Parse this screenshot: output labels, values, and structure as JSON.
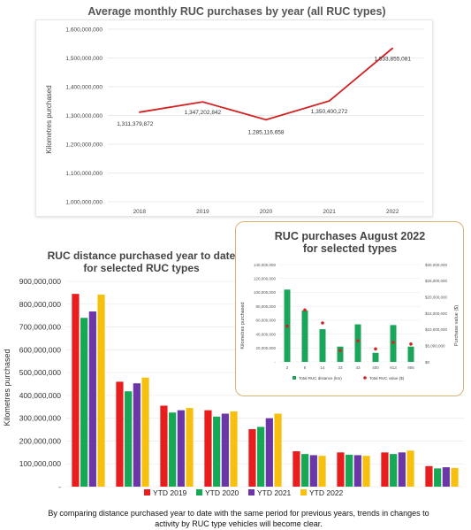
{
  "charts": {
    "c1": {
      "title": "Average monthly RUC purchases by year (all RUC types)",
      "ylabel": "Kilometres purchased"
    },
    "c2": {
      "title_line1": "RUC distance purchased year to date",
      "title_line2": "for selected RUC types",
      "ylabel": "Kilometres purchased"
    },
    "c3": {
      "title_line1": "RUC purchases August 2022",
      "title_line2": "for selected types",
      "ylabel_left": "Kilometres purchased",
      "ylabel_right": "Purchase value ($)"
    }
  },
  "caption": "By comparing distance purchased year to date with the same period for previous years, trends in changes to activity by RUC type vehicles will become clear.",
  "chart_data": [
    {
      "type": "line",
      "title": "Average monthly RUC purchases by year (all RUC types)",
      "ylabel": "Kilometres purchased",
      "x": [
        "2018",
        "2019",
        "2020",
        "2021",
        "2022"
      ],
      "series": [
        {
          "color": "#d42020",
          "values": [
            1311379872,
            1347202842,
            1285116658,
            1350400272,
            1533855081
          ],
          "labels": [
            "1,311,379,872",
            "1,347,202,842",
            "1,285,116,658",
            "1,350,400,272",
            "1,533,855,081"
          ]
        }
      ],
      "ylim": [
        1000000000,
        1600000000
      ],
      "yticks": [
        1000000000,
        1100000000,
        1200000000,
        1300000000,
        1400000000,
        1500000000,
        1600000000
      ],
      "ytick_labels": [
        "1,000,000,000",
        "1,100,000,000",
        "1,200,000,000",
        "1,300,000,000",
        "1,400,000,000",
        "1,500,000,000",
        "1,600,000,000"
      ],
      "grid": true
    },
    {
      "type": "bar",
      "title": "RUC distance purchased year to date for selected RUC types",
      "ylabel": "Kilometres purchased",
      "categories": [
        "",
        "",
        "",
        "",
        "",
        "",
        "",
        "",
        ""
      ],
      "series": [
        {
          "name": "YTD 2019",
          "color": "#e81d1d",
          "values": [
            845000000,
            460000000,
            355000000,
            335000000,
            252000000,
            155000000,
            150000000,
            150000000,
            90000000
          ]
        },
        {
          "name": "YTD 2020",
          "color": "#15a956",
          "values": [
            740000000,
            418000000,
            325000000,
            307000000,
            262000000,
            143000000,
            140000000,
            143000000,
            80000000
          ]
        },
        {
          "name": "YTD 2021",
          "color": "#6c36a8",
          "values": [
            768000000,
            453000000,
            335000000,
            320000000,
            300000000,
            138000000,
            138000000,
            150000000,
            85000000
          ]
        },
        {
          "name": "YTD 2022",
          "color": "#f7bf0e",
          "values": [
            842000000,
            478000000,
            345000000,
            330000000,
            320000000,
            135000000,
            135000000,
            158000000,
            82000000
          ]
        }
      ],
      "ylim": [
        0,
        900000000
      ],
      "yticks": [
        0,
        100000000,
        200000000,
        300000000,
        400000000,
        500000000,
        600000000,
        700000000,
        800000000,
        900000000
      ],
      "ytick_labels": [
        "-",
        "100,000,000",
        "200,000,000",
        "300,000,000",
        "400,000,000",
        "500,000,000",
        "600,000,000",
        "700,000,000",
        "800,000,000",
        "900,000,000"
      ],
      "legend": "bottom",
      "grid": true
    },
    {
      "type": "bar",
      "title": "RUC purchases August 2022 for selected types",
      "ylabel": "Kilometres purchased",
      "y2label": "Purchase value ($)",
      "categories": [
        "2",
        "6",
        "14",
        "33",
        "43",
        "400",
        "913",
        "956"
      ],
      "series": [
        {
          "name": "Total RUC distance (km)",
          "color": "#1aa55a",
          "values": [
            104000000,
            74000000,
            47000000,
            22000000,
            54000000,
            13000000,
            53000000,
            22000000
          ]
        },
        {
          "name": "Total RUC value ($)",
          "color": "#d32323",
          "type": "scatter",
          "axis": "right",
          "values": [
            11000000,
            16000000,
            12000000,
            3500000,
            6500000,
            4000000,
            6000000,
            5500000
          ]
        }
      ],
      "ylim": [
        0,
        140000000
      ],
      "yticks": [
        0,
        20000000,
        40000000,
        60000000,
        80000000,
        100000000,
        120000000,
        140000000
      ],
      "ytick_labels": [
        "-",
        "20,000,000",
        "40,000,000",
        "60,000,000",
        "80,000,000",
        "100,000,000",
        "120,000,000",
        "140,000,000"
      ],
      "y2lim": [
        0,
        30000000
      ],
      "y2ticks": [
        0,
        5000000,
        10000000,
        15000000,
        20000000,
        25000000,
        30000000
      ],
      "y2tick_labels": [
        "$0",
        "$5,000,000",
        "$10,000,000",
        "$15,000,000",
        "$20,000,000",
        "$25,000,000",
        "$30,000,000"
      ],
      "legend": "bottom",
      "grid": true
    }
  ]
}
